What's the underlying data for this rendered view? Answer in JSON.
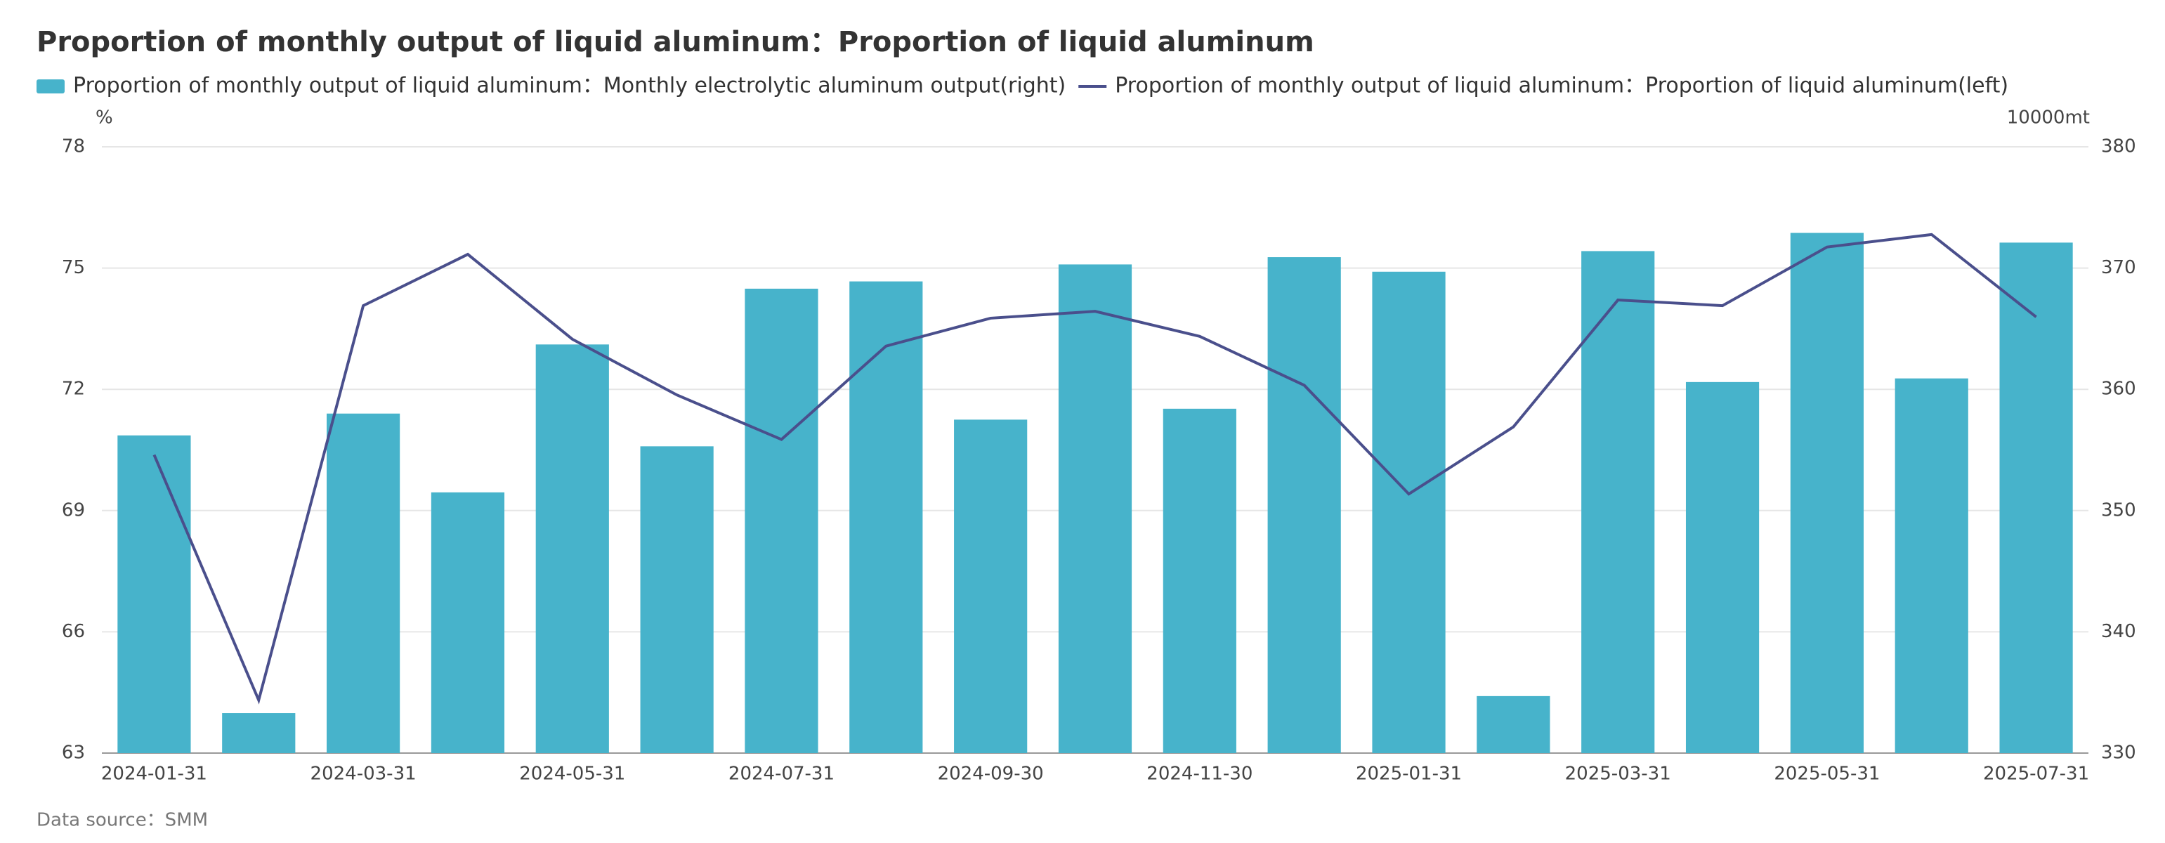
{
  "chart_data": {
    "type": "bar-line",
    "title": "Proportion of monthly output of liquid aluminum：Proportion of liquid aluminum",
    "source": "Data source：SMM",
    "ylabel": "%",
    "y2label": "10000mt",
    "categories": [
      "2024-01-31",
      null,
      "2024-03-31",
      null,
      "2024-05-31",
      null,
      "2024-07-31",
      null,
      "2024-09-30",
      null,
      "2024-11-30",
      null,
      "2025-01-31",
      null,
      "2025-03-31",
      null,
      "2025-05-31",
      null,
      "2025-07-31"
    ],
    "series": [
      {
        "name": "Proportion of monthly output of liquid aluminum：Monthly electrolytic aluminum output(right)",
        "type": "bar",
        "axis": "y2",
        "color": "#47b3cb",
        "values": [
          356.2,
          333.3,
          358.0,
          351.5,
          363.7,
          355.3,
          368.3,
          368.9,
          357.5,
          370.3,
          358.4,
          370.9,
          369.7,
          334.7,
          371.4,
          360.6,
          372.9,
          360.9,
          372.1
        ]
      },
      {
        "name": "Proportion of monthly output of liquid aluminum：Proportion of liquid aluminum(left)",
        "type": "line",
        "axis": "y",
        "color": "#4a4f8c",
        "values": [
          70.38,
          64.31,
          74.07,
          75.34,
          73.24,
          71.86,
          70.76,
          73.07,
          73.76,
          73.93,
          73.31,
          72.1,
          69.41,
          71.07,
          74.21,
          74.07,
          75.52,
          75.83,
          73.79
        ]
      }
    ],
    "ylim": [
      63,
      78
    ],
    "yticks": [
      63,
      66,
      69,
      72,
      75,
      78
    ],
    "y2lim": [
      330,
      380
    ],
    "y2ticks": [
      330,
      340,
      350,
      360,
      370,
      380
    ],
    "grid": true
  }
}
